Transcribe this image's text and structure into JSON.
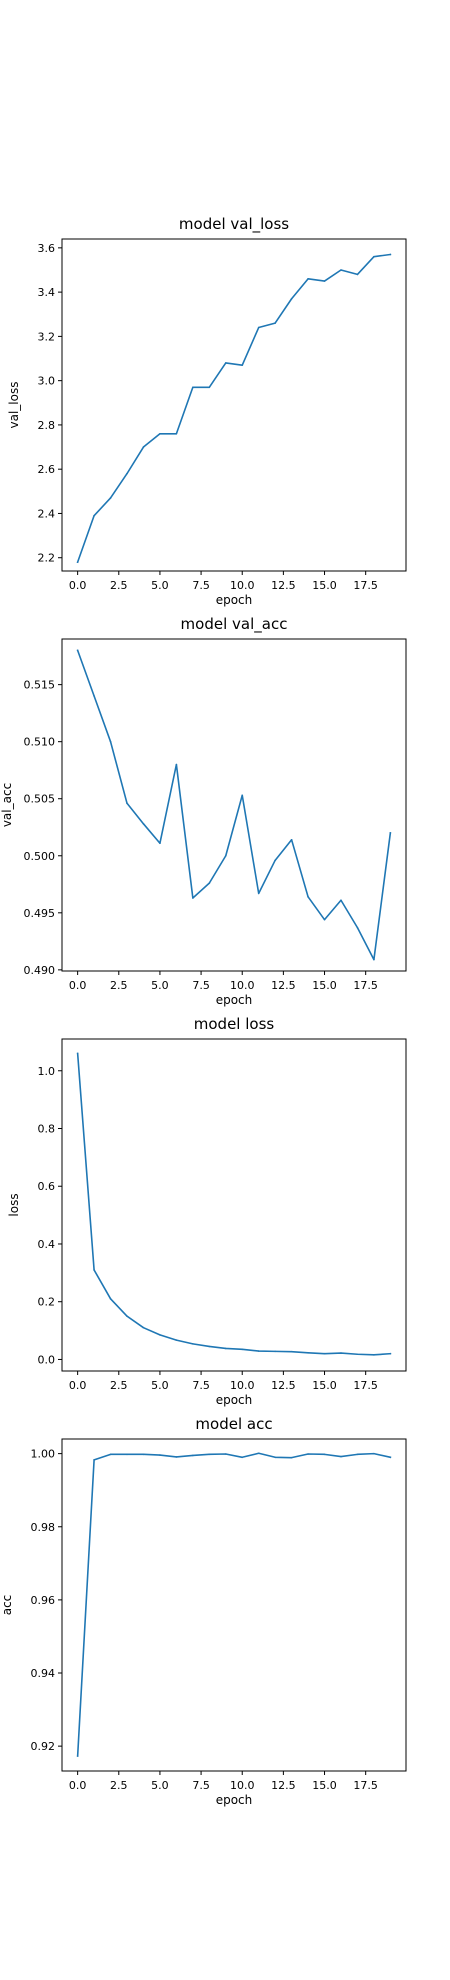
{
  "chart_data": [
    {
      "type": "line",
      "title": "model val_loss",
      "xlabel": "epoch",
      "ylabel": "val_loss",
      "xlim": [
        -0.95,
        19.95
      ],
      "ylim": [
        2.14,
        3.64
      ],
      "xticks": [
        0,
        2.5,
        5,
        7.5,
        10,
        12.5,
        15,
        17.5
      ],
      "xtick_labels": [
        "0.0",
        "2.5",
        "5.0",
        "7.5",
        "10.0",
        "12.5",
        "15.0",
        "17.5"
      ],
      "yticks": [
        2.2,
        2.4,
        2.6,
        2.8,
        3.0,
        3.2,
        3.4,
        3.6
      ],
      "ytick_labels": [
        "2.2",
        "2.4",
        "2.6",
        "2.8",
        "3.0",
        "3.2",
        "3.4",
        "3.6"
      ],
      "grid": false,
      "series": [
        {
          "color": "#1f77b4",
          "x": [
            0,
            1,
            2,
            3,
            4,
            5,
            6,
            7,
            8,
            9,
            10,
            11,
            12,
            13,
            14,
            15,
            16,
            17,
            18,
            19
          ],
          "y": [
            2.18,
            2.39,
            2.47,
            2.58,
            2.7,
            2.76,
            2.76,
            2.97,
            2.97,
            3.08,
            3.07,
            3.24,
            3.26,
            3.37,
            3.46,
            3.45,
            3.5,
            3.48,
            3.56,
            3.57
          ]
        }
      ]
    },
    {
      "type": "line",
      "title": "model val_acc",
      "xlabel": "epoch",
      "ylabel": "val_acc",
      "xlim": [
        -0.95,
        19.95
      ],
      "ylim": [
        0.4899,
        0.519
      ],
      "xticks": [
        0,
        2.5,
        5,
        7.5,
        10,
        12.5,
        15,
        17.5
      ],
      "xtick_labels": [
        "0.0",
        "2.5",
        "5.0",
        "7.5",
        "10.0",
        "12.5",
        "15.0",
        "17.5"
      ],
      "yticks": [
        0.49,
        0.495,
        0.5,
        0.505,
        0.51,
        0.515
      ],
      "ytick_labels": [
        "0.490",
        "0.495",
        "0.500",
        "0.505",
        "0.510",
        "0.515"
      ],
      "grid": false,
      "series": [
        {
          "color": "#1f77b4",
          "x": [
            0,
            1,
            2,
            3,
            4,
            5,
            6,
            7,
            8,
            9,
            10,
            11,
            12,
            13,
            14,
            15,
            16,
            17,
            18,
            19
          ],
          "y": [
            0.518,
            0.514,
            0.51,
            0.5046,
            0.5028,
            0.5011,
            0.508,
            0.4963,
            0.4976,
            0.5,
            0.5053,
            0.4967,
            0.4996,
            0.5014,
            0.4964,
            0.4944,
            0.4961,
            0.4937,
            0.4909,
            0.502
          ]
        }
      ]
    },
    {
      "type": "line",
      "title": "model loss",
      "xlabel": "epoch",
      "ylabel": "loss",
      "xlim": [
        -0.95,
        19.95
      ],
      "ylim": [
        -0.04,
        1.11
      ],
      "xticks": [
        0,
        2.5,
        5,
        7.5,
        10,
        12.5,
        15,
        17.5
      ],
      "xtick_labels": [
        "0.0",
        "2.5",
        "5.0",
        "7.5",
        "10.0",
        "12.5",
        "15.0",
        "17.5"
      ],
      "yticks": [
        0.0,
        0.2,
        0.4,
        0.6,
        0.8,
        1.0
      ],
      "ytick_labels": [
        "0.0",
        "0.2",
        "0.4",
        "0.6",
        "0.8",
        "1.0"
      ],
      "grid": false,
      "series": [
        {
          "color": "#1f77b4",
          "x": [
            0,
            1,
            2,
            3,
            4,
            5,
            6,
            7,
            8,
            9,
            10,
            11,
            12,
            13,
            14,
            15,
            16,
            17,
            18,
            19
          ],
          "y": [
            1.06,
            0.31,
            0.21,
            0.15,
            0.11,
            0.085,
            0.067,
            0.054,
            0.045,
            0.038,
            0.035,
            0.029,
            0.028,
            0.027,
            0.023,
            0.02,
            0.022,
            0.018,
            0.016,
            0.02
          ]
        }
      ]
    },
    {
      "type": "line",
      "title": "model acc",
      "xlabel": "epoch",
      "ylabel": "acc",
      "xlim": [
        -0.95,
        19.95
      ],
      "ylim": [
        0.9132,
        1.004
      ],
      "xticks": [
        0,
        2.5,
        5,
        7.5,
        10,
        12.5,
        15,
        17.5
      ],
      "xtick_labels": [
        "0.0",
        "2.5",
        "5.0",
        "7.5",
        "10.0",
        "12.5",
        "15.0",
        "17.5"
      ],
      "yticks": [
        0.92,
        0.94,
        0.96,
        0.98,
        1.0
      ],
      "ytick_labels": [
        "0.92",
        "0.94",
        "0.96",
        "0.98",
        "1.00"
      ],
      "grid": false,
      "series": [
        {
          "color": "#1f77b4",
          "x": [
            0,
            1,
            2,
            3,
            4,
            5,
            6,
            7,
            8,
            9,
            10,
            11,
            12,
            13,
            14,
            15,
            16,
            17,
            18,
            19
          ],
          "y": [
            0.9173,
            0.9983,
            0.9998,
            0.9998,
            0.9998,
            0.9996,
            0.9991,
            0.9995,
            0.9998,
            0.9999,
            0.999,
            1.0001,
            0.999,
            0.9989,
            0.9999,
            0.9998,
            0.9992,
            0.9998,
            1.0,
            0.999
          ]
        }
      ]
    }
  ]
}
